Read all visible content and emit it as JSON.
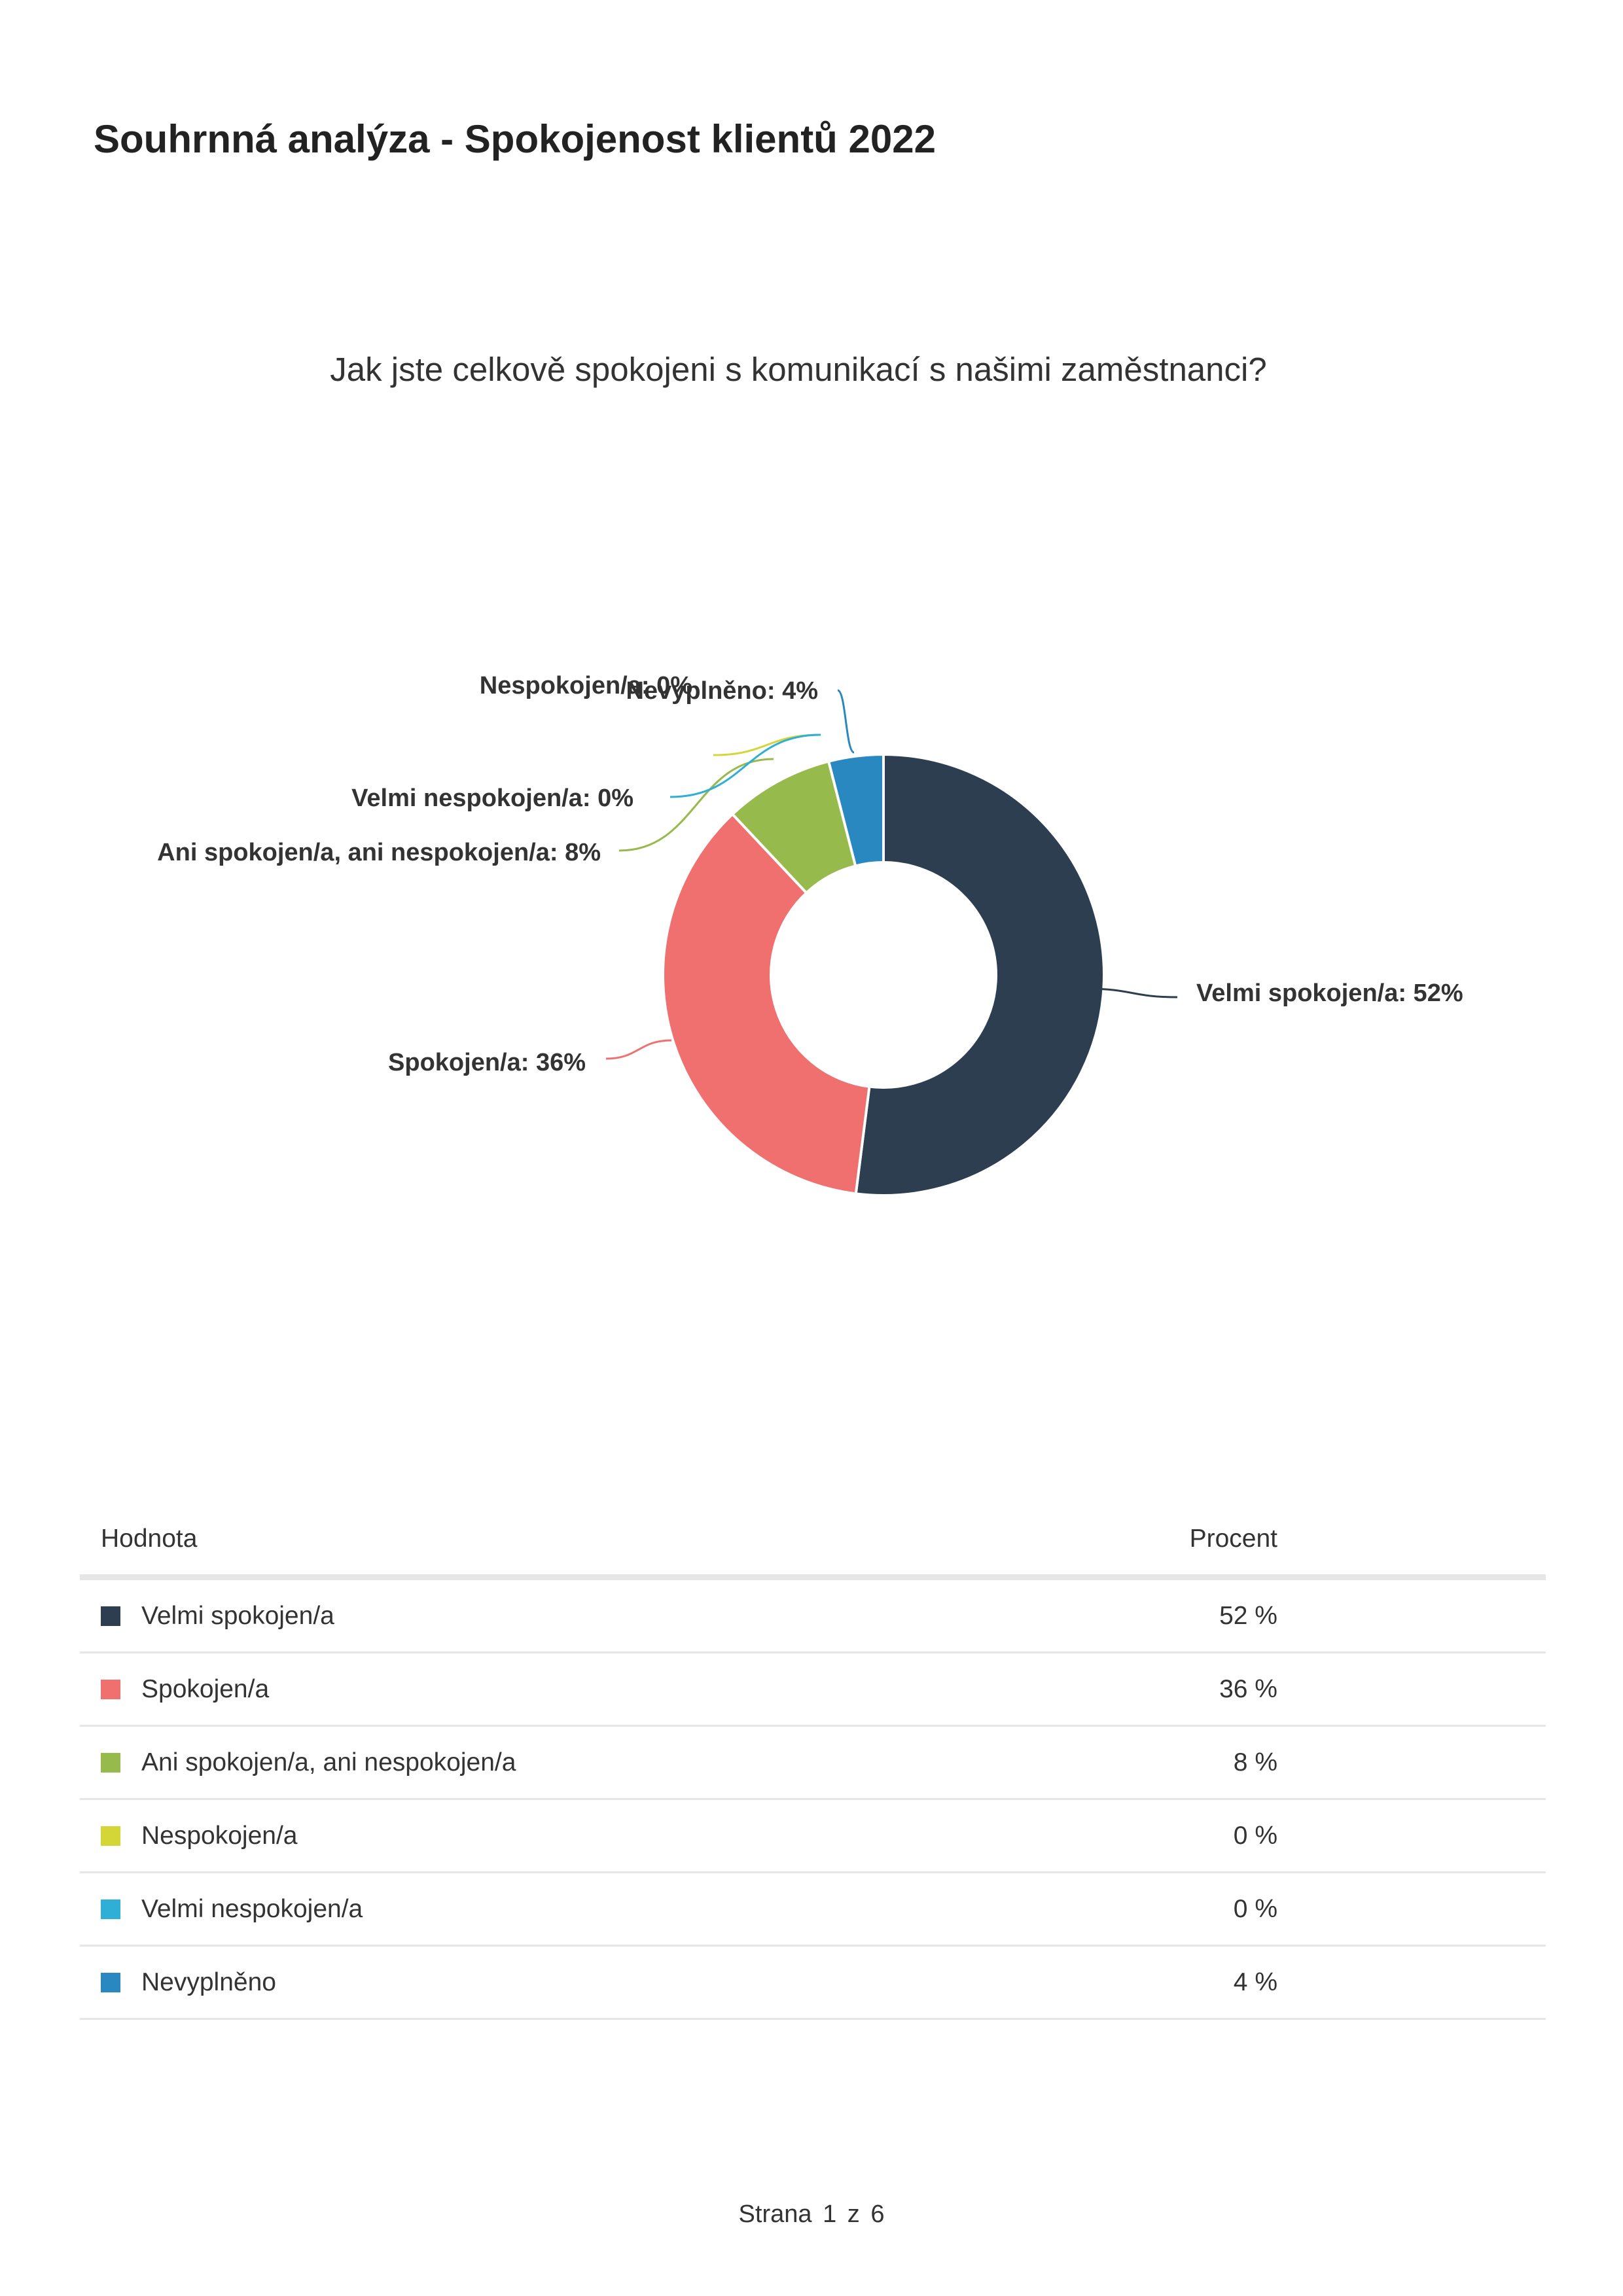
{
  "report": {
    "title": "Souhrnná analýza - Spokojenost klientů 2022"
  },
  "question": "Jak jste celkově spokojeni s komunikací s našimi zaměstnanci?",
  "chart_data": {
    "type": "pie",
    "variant": "donut",
    "labels": [
      "Velmi spokojen/a",
      "Spokojen/a",
      "Ani spokojen/a, ani nespokojen/a",
      "Nespokojen/a",
      "Velmi nespokojen/a",
      "Nevyplněno"
    ],
    "values": [
      52,
      36,
      8,
      0,
      0,
      4
    ],
    "unit": "%",
    "data_labels": [
      "Velmi spokojen/a: 52%",
      "Spokojen/a: 36%",
      "Ani spokojen/a, ani nespokojen/a: 8%",
      "Nespokojen/a: 0%",
      "Velmi nespokojen/a: 0%",
      "Nevyplněno: 4%"
    ],
    "colors": [
      "#2c3e50",
      "#f07070",
      "#97ba4c",
      "#d4d536",
      "#2fafd5",
      "#2a88c0"
    ]
  },
  "table": {
    "headers": {
      "value": "Hodnota",
      "percent": "Procent"
    },
    "rows": [
      {
        "label": "Velmi spokojen/a",
        "percent": "52 %",
        "color": "#2c3e50"
      },
      {
        "label": "Spokojen/a",
        "percent": "36 %",
        "color": "#f07070"
      },
      {
        "label": "Ani spokojen/a, ani nespokojen/a",
        "percent": "8 %",
        "color": "#97ba4c"
      },
      {
        "label": "Nespokojen/a",
        "percent": "0 %",
        "color": "#d4d536"
      },
      {
        "label": "Velmi nespokojen/a",
        "percent": "0 %",
        "color": "#2fafd5"
      },
      {
        "label": "Nevyplněno",
        "percent": "4 %",
        "color": "#2a88c0"
      }
    ]
  },
  "footer": {
    "page_label": "Strana 1 z 6"
  }
}
